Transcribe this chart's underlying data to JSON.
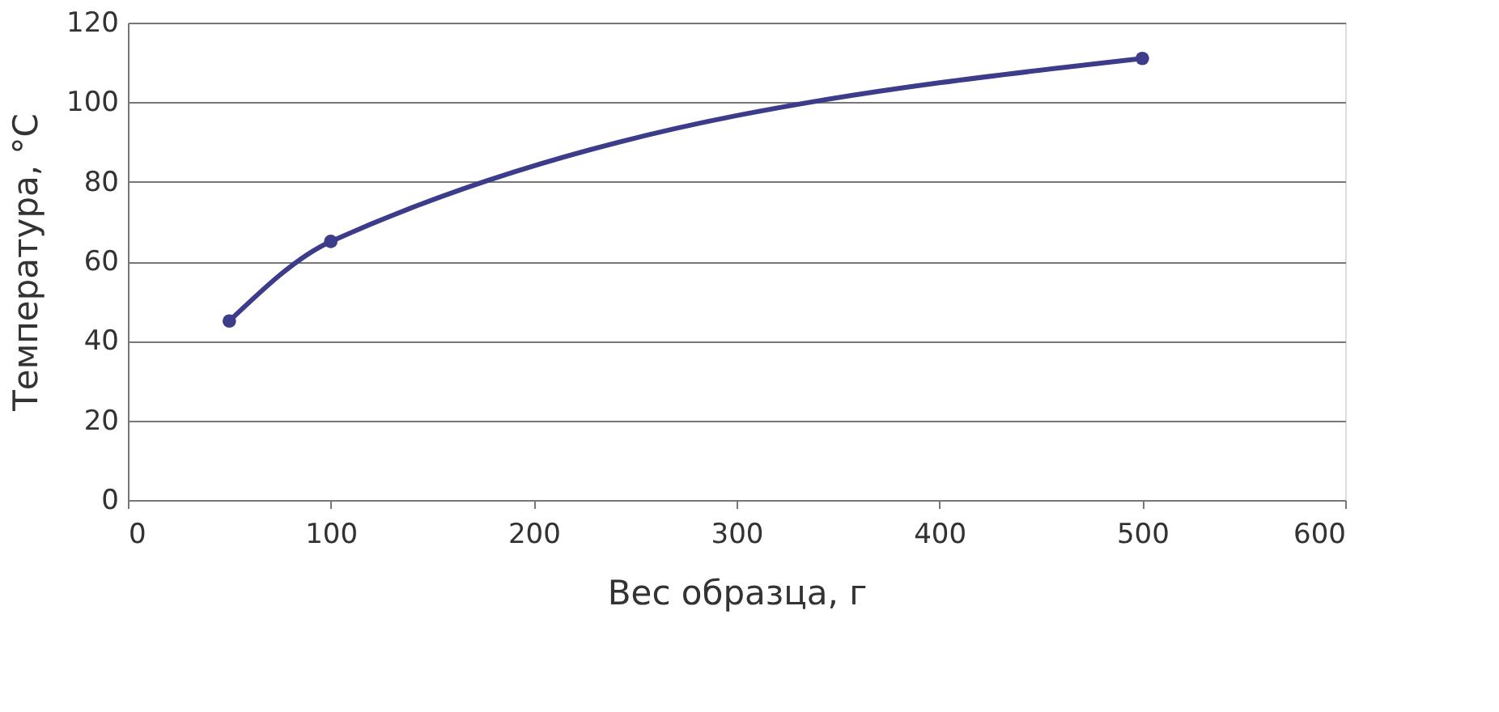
{
  "chart_data": {
    "type": "line",
    "xlabel": "Вес образца, г",
    "ylabel": "Температура, °С",
    "x": [
      50,
      100,
      500
    ],
    "values": [
      45,
      65,
      111
    ],
    "color": "#3c3c8a",
    "xlim": [
      0,
      600
    ],
    "ylim": [
      0,
      120
    ],
    "xticks": [
      0,
      100,
      200,
      300,
      400,
      500,
      600
    ],
    "yticks": [
      0,
      20,
      40,
      60,
      80,
      100,
      120
    ],
    "grid": "y",
    "marker": "circle",
    "line_style": "solid"
  }
}
